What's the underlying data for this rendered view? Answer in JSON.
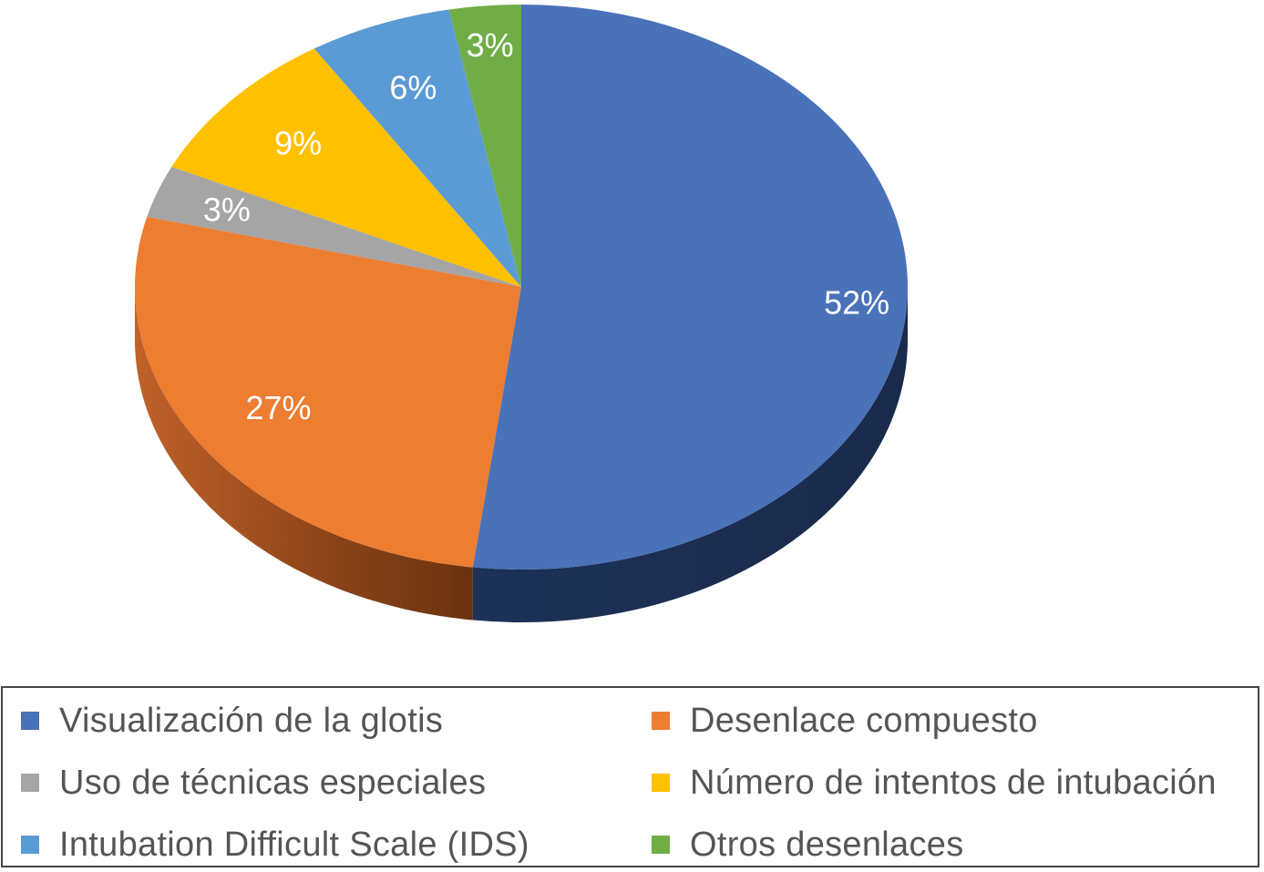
{
  "chart_data": {
    "type": "pie",
    "style": "3d",
    "title": "",
    "categories": [
      "Visualización de la glotis",
      "Desenlace compuesto",
      "Uso de técnicas especiales",
      "Número de intentos de intubación",
      "Intubation Difficult Scale (IDS)",
      "Otros desenlaces"
    ],
    "values": [
      52,
      27,
      3,
      9,
      6,
      3
    ],
    "value_labels": [
      "52%",
      "27%",
      "3%",
      "9%",
      "6%",
      "3%"
    ],
    "colors": [
      "#4a72b8",
      "#ed7d31",
      "#a5a5a5",
      "#ffc000",
      "#5b9bd5",
      "#70ad47"
    ],
    "legend_position": "bottom"
  }
}
